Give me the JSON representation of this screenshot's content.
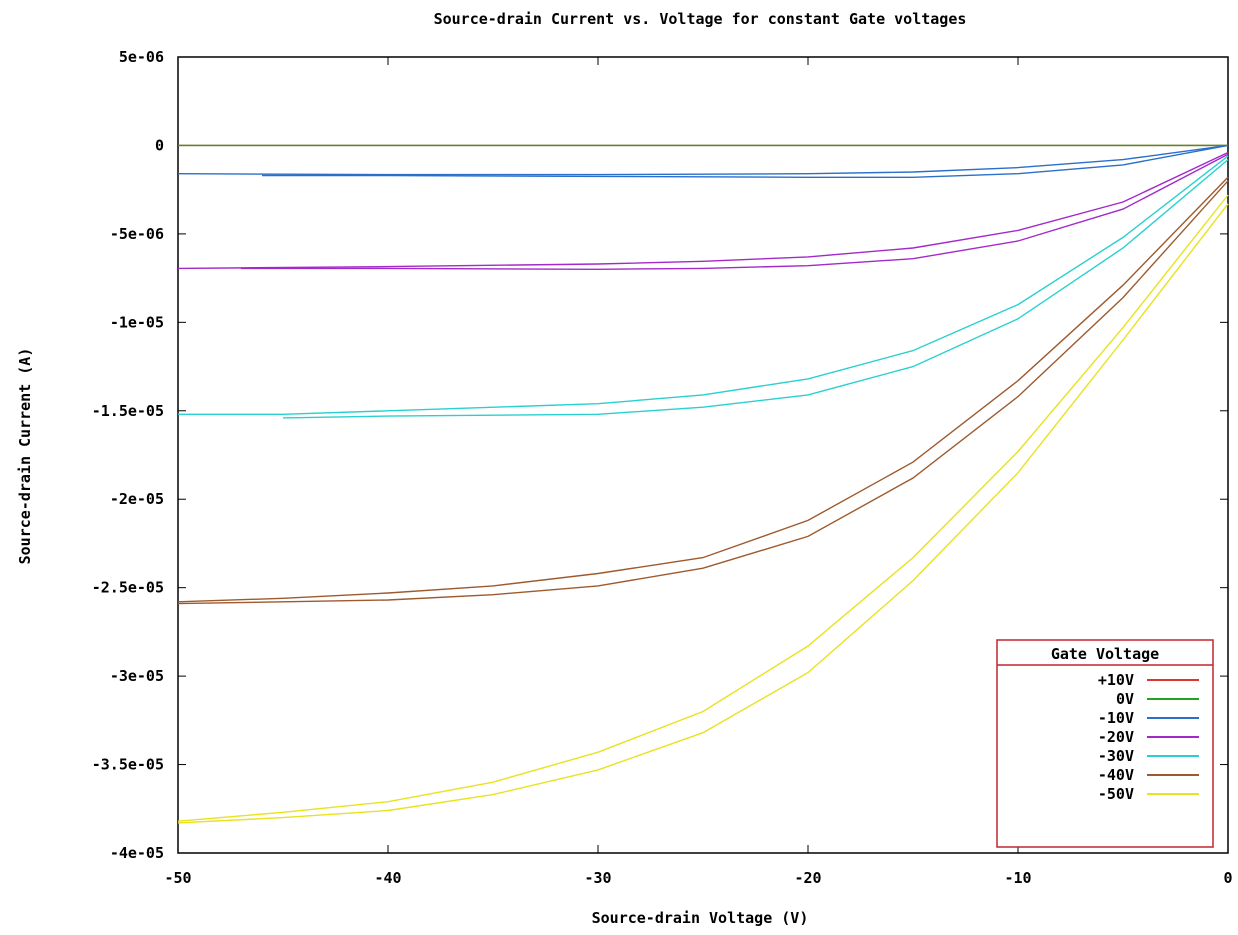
{
  "chart_data": {
    "type": "line",
    "title": "Source-drain Current vs. Voltage for constant Gate voltages",
    "xlabel": "Source-drain Voltage (V)",
    "ylabel": "Source-drain Current (A)",
    "xlim": [
      -50,
      0
    ],
    "ylim": [
      -4e-05,
      5e-06
    ],
    "x_ticks": [
      -50,
      -40,
      -30,
      -20,
      -10,
      0
    ],
    "x_tick_labels": [
      "-50",
      "-40",
      "-30",
      "-20",
      "-10",
      "0"
    ],
    "y_ticks": [
      5e-06,
      0,
      -5e-06,
      -1e-05,
      -1.5e-05,
      -2e-05,
      -2.5e-05,
      -3e-05,
      -3.5e-05,
      -4e-05
    ],
    "y_tick_labels": [
      "5e-06",
      "0",
      "-5e-06",
      "-1e-05",
      "-1.5e-05",
      "-2e-05",
      "-2.5e-05",
      "-3e-05",
      "-3.5e-05",
      "-4e-05"
    ],
    "grid": false,
    "legend": {
      "title": "Gate Voltage",
      "position": "bottom-right"
    },
    "series": [
      {
        "name": "+10V",
        "color": "#d93a2b",
        "sweeps": [
          {
            "x": [
              -50,
              0
            ],
            "y": [
              0,
              0
            ]
          }
        ]
      },
      {
        "name": "0V",
        "color": "#22a322",
        "sweeps": [
          {
            "x": [
              -50,
              0
            ],
            "y": [
              0,
              0
            ]
          }
        ]
      },
      {
        "name": "-10V",
        "color": "#2a6fc9",
        "sweeps": [
          {
            "x": [
              -50,
              -40,
              -30,
              -20,
              -15,
              -10,
              -5,
              0
            ],
            "y": [
              -1.6e-06,
              -1.65e-06,
              -1.65e-06,
              -1.6e-06,
              -1.5e-06,
              -1.25e-06,
              -8e-07,
              0
            ]
          },
          {
            "x": [
              -46,
              -40,
              -30,
              -20,
              -15,
              -10,
              -5,
              0
            ],
            "y": [
              -1.7e-06,
              -1.7e-06,
              -1.75e-06,
              -1.8e-06,
              -1.8e-06,
              -1.6e-06,
              -1.1e-06,
              0
            ]
          }
        ]
      },
      {
        "name": "-20V",
        "color": "#a32ac9",
        "sweeps": [
          {
            "x": [
              -50,
              -40,
              -30,
              -25,
              -20,
              -15,
              -10,
              -5,
              0
            ],
            "y": [
              -6.95e-06,
              -6.85e-06,
              -6.7e-06,
              -6.55e-06,
              -6.3e-06,
              -5.8e-06,
              -4.8e-06,
              -3.2e-06,
              -4e-07
            ]
          },
          {
            "x": [
              -47,
              -40,
              -30,
              -25,
              -20,
              -15,
              -10,
              -5,
              0
            ],
            "y": [
              -6.95e-06,
              -6.95e-06,
              -7e-06,
              -6.95e-06,
              -6.8e-06,
              -6.4e-06,
              -5.4e-06,
              -3.6e-06,
              -5e-07
            ]
          }
        ]
      },
      {
        "name": "-30V",
        "color": "#2ad0d0",
        "sweeps": [
          {
            "x": [
              -50,
              -45,
              -40,
              -30,
              -25,
              -20,
              -15,
              -10,
              -5,
              0
            ],
            "y": [
              -1.52e-05,
              -1.52e-05,
              -1.5e-05,
              -1.46e-05,
              -1.41e-05,
              -1.32e-05,
              -1.16e-05,
              -9e-06,
              -5.2e-06,
              -6e-07
            ]
          },
          {
            "x": [
              -45,
              -40,
              -30,
              -25,
              -20,
              -15,
              -10,
              -5,
              0
            ],
            "y": [
              -1.54e-05,
              -1.53e-05,
              -1.52e-05,
              -1.48e-05,
              -1.41e-05,
              -1.25e-05,
              -9.8e-06,
              -5.8e-06,
              -8e-07
            ]
          }
        ]
      },
      {
        "name": "-40V",
        "color": "#9e5a2e",
        "sweeps": [
          {
            "x": [
              -50,
              -45,
              -40,
              -35,
              -30,
              -25,
              -20,
              -15,
              -10,
              -5,
              0
            ],
            "y": [
              -2.58e-05,
              -2.56e-05,
              -2.53e-05,
              -2.49e-05,
              -2.42e-05,
              -2.33e-05,
              -2.12e-05,
              -1.79e-05,
              -1.33e-05,
              -7.9e-06,
              -1.8e-06
            ]
          },
          {
            "x": [
              -50,
              -45,
              -40,
              -35,
              -30,
              -25,
              -20,
              -15,
              -10,
              -5,
              0
            ],
            "y": [
              -2.59e-05,
              -2.58e-05,
              -2.57e-05,
              -2.54e-05,
              -2.49e-05,
              -2.39e-05,
              -2.21e-05,
              -1.88e-05,
              -1.42e-05,
              -8.6e-06,
              -2e-06
            ]
          }
        ]
      },
      {
        "name": "-50V",
        "color": "#e8e21f",
        "sweeps": [
          {
            "x": [
              -50,
              -45,
              -40,
              -35,
              -30,
              -25,
              -20,
              -15,
              -10,
              -5,
              0
            ],
            "y": [
              -3.82e-05,
              -3.77e-05,
              -3.71e-05,
              -3.6e-05,
              -3.43e-05,
              -3.2e-05,
              -2.83e-05,
              -2.33e-05,
              -1.73e-05,
              -1.03e-05,
              -2.8e-06
            ]
          },
          {
            "x": [
              -50,
              -45,
              -40,
              -35,
              -30,
              -25,
              -20,
              -15,
              -10,
              -5,
              0
            ],
            "y": [
              -3.83e-05,
              -3.8e-05,
              -3.76e-05,
              -3.67e-05,
              -3.53e-05,
              -3.32e-05,
              -2.98e-05,
              -2.46e-05,
              -1.85e-05,
              -1.1e-05,
              -3.3e-06
            ]
          }
        ]
      }
    ]
  }
}
